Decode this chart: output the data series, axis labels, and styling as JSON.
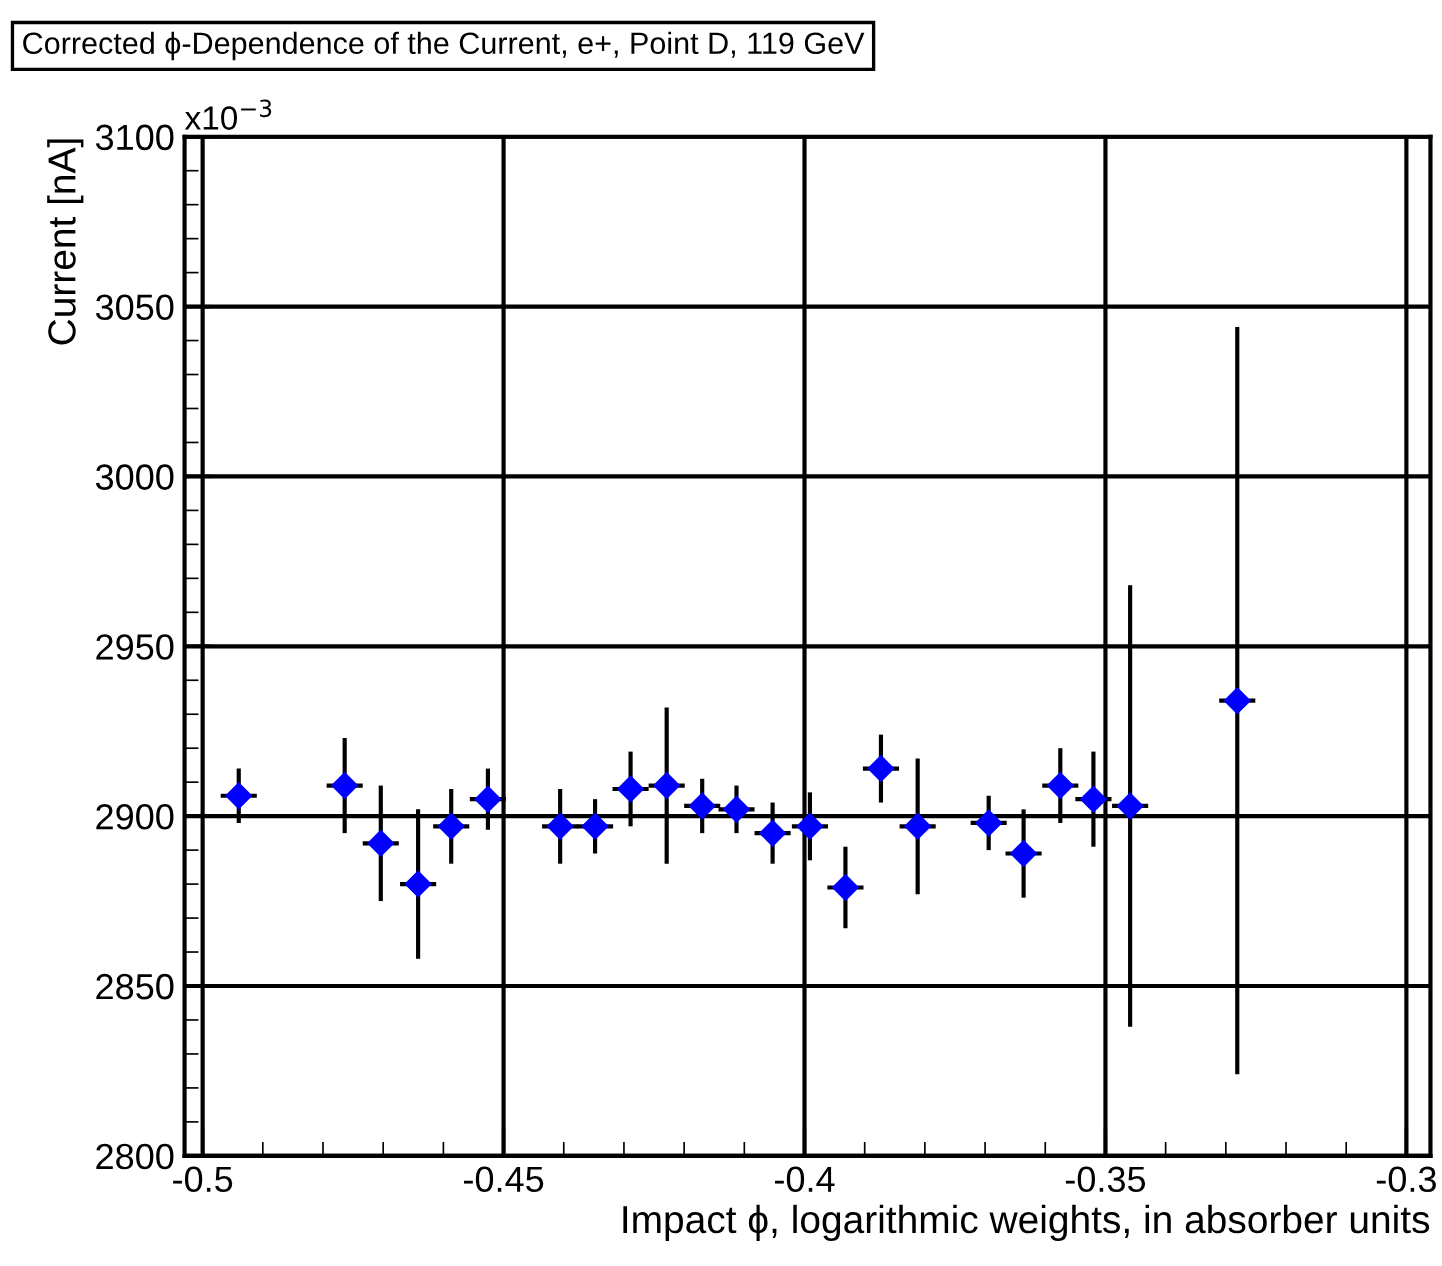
{
  "chart_data": {
    "type": "scatter",
    "title": "Corrected ϕ-Dependence of the Current, e+, Point D, 119 GeV",
    "xlabel": "Impact ϕ, logarithmic weights, in absorber units",
    "ylabel": "Current [nA]",
    "annotations": [
      "x10$^{−3}$"
    ],
    "x": [
      -0.494,
      -0.4764,
      -0.4704,
      -0.4642,
      -0.4587,
      -0.4526,
      -0.4406,
      -0.4348,
      -0.4289,
      -0.4229,
      -0.417,
      -0.4113,
      -0.4053,
      -0.3991,
      -0.3932,
      -0.3873,
      -0.3812,
      -0.3694,
      -0.3636,
      -0.3575,
      -0.352,
      -0.3459,
      -0.3281
    ],
    "series": [
      {
        "color": "#0000ff",
        "values": [
          2906,
          2909,
          2892,
          2880,
          2897,
          2905,
          2897,
          2897,
          2908,
          2909,
          2903,
          2902,
          2895,
          2897,
          2879,
          2914,
          2897,
          2898,
          2889,
          2909,
          2905,
          2903,
          2934
        ],
        "errors": [
          8,
          14,
          17,
          22,
          11,
          9,
          11,
          8,
          11,
          23,
          8,
          7,
          9,
          10,
          12,
          10,
          20,
          8,
          13,
          11,
          14,
          65,
          110
        ],
        "xerrors": [
          0.003,
          0.003,
          0.003,
          0.003,
          0.003,
          0.003,
          0.003,
          0.003,
          0.003,
          0.003,
          0.003,
          0.003,
          0.003,
          0.003,
          0.003,
          0.003,
          0.003,
          0.003,
          0.003,
          0.003,
          0.003,
          0.003,
          0.003
        ]
      }
    ],
    "xlim": [
      -0.503,
      -0.296
    ],
    "ylim": [
      2800,
      3100
    ],
    "xticks": [
      -0.5,
      -0.45,
      -0.4,
      -0.35,
      -0.3
    ],
    "yticks": [
      2800,
      2850,
      2900,
      2950,
      3000,
      3050,
      3100
    ],
    "grid": true,
    "marker": "diamond"
  }
}
